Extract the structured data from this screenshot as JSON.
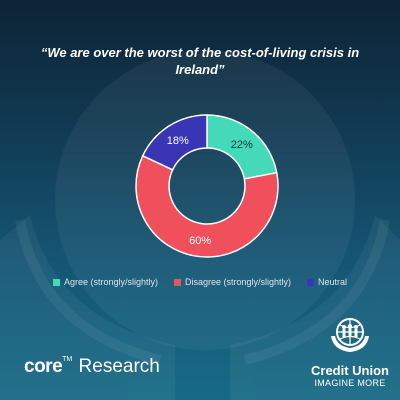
{
  "header": {
    "title": "“We are over the worst of the cost-of-living crisis in Ireland”"
  },
  "chart_data": {
    "type": "pie",
    "title": "“We are over the worst of the cost-of-living crisis in Ireland”",
    "categories": [
      "Agree (strongly/slightly)",
      "Disagree (strongly/slightly)",
      "Neutral"
    ],
    "values": [
      22,
      60,
      18
    ],
    "value_labels": [
      "22%",
      "60%",
      "18%"
    ],
    "colors": [
      "#44d9b8",
      "#f0505c",
      "#3a35b5"
    ],
    "label_colors": [
      "#0e3040",
      "#ffffff",
      "#ffffff"
    ],
    "donut": true,
    "legend_position": "bottom-center"
  },
  "branding": {
    "left_wordmark_bold": "core",
    "left_wordmark_tm": "TM",
    "left_wordmark_rest": "Research",
    "right_logo_name": "Credit Union",
    "right_logo_tagline": "IMAGINE MORE"
  }
}
